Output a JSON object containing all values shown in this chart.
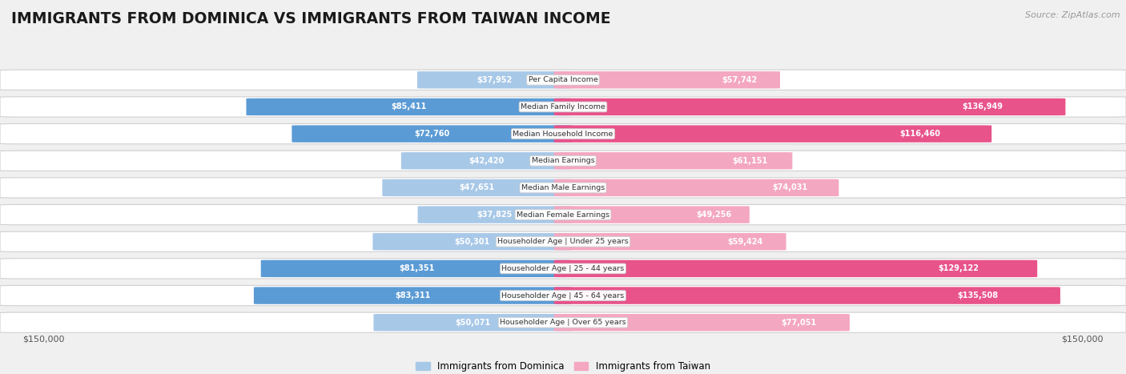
{
  "title": "IMMIGRANTS FROM DOMINICA VS IMMIGRANTS FROM TAIWAN INCOME",
  "source": "Source: ZipAtlas.com",
  "categories": [
    "Per Capita Income",
    "Median Family Income",
    "Median Household Income",
    "Median Earnings",
    "Median Male Earnings",
    "Median Female Earnings",
    "Householder Age | Under 25 years",
    "Householder Age | 25 - 44 years",
    "Householder Age | 45 - 64 years",
    "Householder Age | Over 65 years"
  ],
  "dominica_values": [
    37952,
    85411,
    72760,
    42420,
    47651,
    37825,
    50301,
    81351,
    83311,
    50071
  ],
  "taiwan_values": [
    57742,
    136949,
    116460,
    61151,
    74031,
    49256,
    59424,
    129122,
    135508,
    77051
  ],
  "dominica_labels": [
    "$37,952",
    "$85,411",
    "$72,760",
    "$42,420",
    "$47,651",
    "$37,825",
    "$50,301",
    "$81,351",
    "$83,311",
    "$50,071"
  ],
  "taiwan_labels": [
    "$57,742",
    "$136,949",
    "$116,460",
    "$61,151",
    "$74,031",
    "$49,256",
    "$59,424",
    "$129,122",
    "$135,508",
    "$77,051"
  ],
  "dominica_color_light": "#a8c8e8",
  "dominica_color_dark": "#5b9bd5",
  "taiwan_color_light": "#f4a7c0",
  "taiwan_color_dark": "#e8538a",
  "dominica_dark_threshold": 60000,
  "taiwan_dark_threshold": 90000,
  "max_value": 150000,
  "legend_dominica": "Immigrants from Dominica",
  "legend_taiwan": "Immigrants from Taiwan",
  "bg_color": "#f0f0f0",
  "row_bg_color": "#ffffff",
  "row_border_color": "#d0d0d0"
}
